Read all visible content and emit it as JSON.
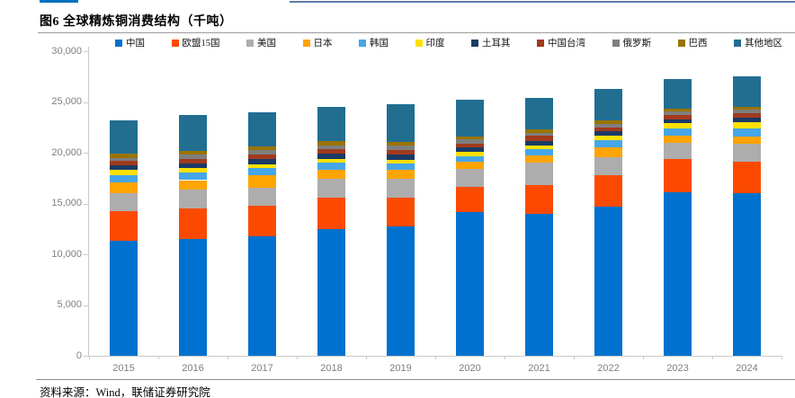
{
  "header": {
    "title": "图6  全球精炼铜消费结构（千吨）"
  },
  "source": {
    "label": "资料来源：Wind，联储证券研究院"
  },
  "chart_data": {
    "type": "bar",
    "subtype": "stacked-vertical",
    "title": "图6 全球精炼铜消费结构（千吨）",
    "xlabel": "",
    "ylabel": "",
    "unit": "千吨",
    "ylim": [
      0,
      30000
    ],
    "ytick_values": [
      0,
      5000,
      10000,
      15000,
      20000,
      25000,
      30000
    ],
    "ytick_labels": [
      "0",
      "5,000",
      "10,000",
      "15,000",
      "20,000",
      "25,000",
      "30,000"
    ],
    "gridlines": false,
    "legend_position": "top",
    "categories": [
      "2015",
      "2016",
      "2017",
      "2018",
      "2019",
      "2020",
      "2021",
      "2022",
      "2023",
      "2024"
    ],
    "series": [
      {
        "name": "中国",
        "color": "#0071ce",
        "values": [
          11300,
          11500,
          11800,
          12500,
          12700,
          14200,
          13950,
          14650,
          16150,
          16050
        ]
      },
      {
        "name": "欧盟15国",
        "color": "#fb4a00",
        "values": [
          2950,
          3000,
          3000,
          3100,
          2900,
          2450,
          2850,
          3100,
          3200,
          3050
        ]
      },
      {
        "name": "美国",
        "color": "#adadad",
        "values": [
          1800,
          1900,
          1750,
          1800,
          1800,
          1750,
          2250,
          1800,
          1600,
          1750
        ]
      },
      {
        "name": "日本",
        "color": "#ffa400",
        "values": [
          1000,
          900,
          1200,
          900,
          900,
          700,
          700,
          950,
          760,
          760
        ]
      },
      {
        "name": "韩国",
        "color": "#45a6e8",
        "values": [
          770,
          770,
          760,
          760,
          650,
          580,
          590,
          770,
          710,
          770
        ]
      },
      {
        "name": "印度",
        "color": "#ffe000",
        "values": [
          470,
          400,
          350,
          350,
          350,
          390,
          410,
          410,
          480,
          590
        ]
      },
      {
        "name": "土耳其",
        "color": "#1a3a66",
        "values": [
          440,
          500,
          480,
          500,
          480,
          440,
          420,
          420,
          410,
          470
        ]
      },
      {
        "name": "中国台湾",
        "color": "#a03a1d",
        "values": [
          440,
          440,
          500,
          440,
          500,
          410,
          470,
          420,
          420,
          420
        ]
      },
      {
        "name": "俄罗斯",
        "color": "#7f7f7f",
        "values": [
          330,
          420,
          390,
          380,
          390,
          390,
          350,
          350,
          350,
          350
        ]
      },
      {
        "name": "巴西",
        "color": "#9a7400",
        "values": [
          380,
          380,
          350,
          390,
          350,
          320,
          350,
          350,
          290,
          290
        ]
      },
      {
        "name": "其他地区",
        "color": "#216e91",
        "values": [
          3300,
          3540,
          3420,
          3420,
          3720,
          3600,
          3070,
          3040,
          2870,
          2980
        ]
      }
    ]
  }
}
